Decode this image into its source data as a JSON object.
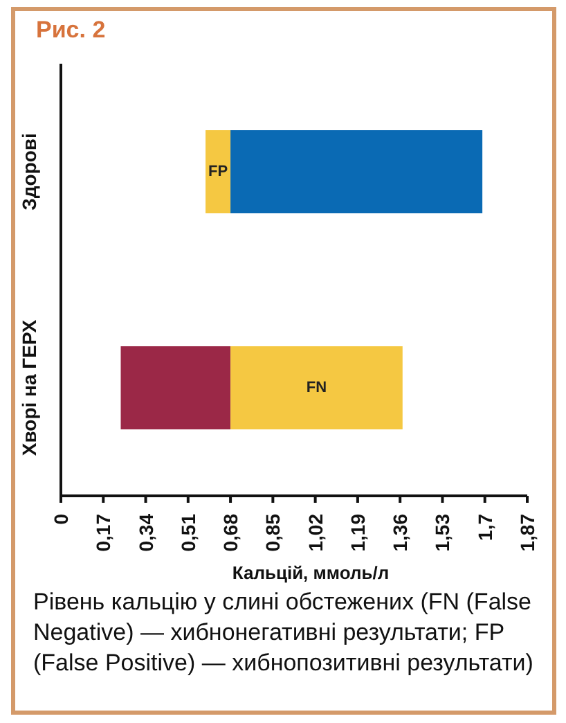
{
  "chart_data": {
    "type": "bar",
    "orientation": "horizontal",
    "title": "Рис. 2",
    "xlabel": "Кальцій, ммоль/л",
    "categories": [
      "Здорові",
      "Хворі на ГЕРХ"
    ],
    "series": [
      {
        "colors": [
          "#f5c842",
          "#9b2847"
        ],
        "base": [
          0.58,
          0.24
        ],
        "values": [
          0.1,
          0.44
        ],
        "value_labels": [
          "FP",
          null
        ]
      },
      {
        "colors": [
          "#0a6ab4",
          "#f5c842"
        ],
        "base": [
          0.68,
          0.68
        ],
        "values": [
          1.01,
          0.69
        ],
        "value_labels": [
          null,
          "FN"
        ]
      }
    ],
    "xlim": [
      0,
      1.87
    ],
    "xticks": [
      0,
      {
        "value": 0.17,
        "label": "0,17"
      },
      {
        "value": 0.34,
        "label": "0,34"
      },
      {
        "value": 0.51,
        "label": "0,51"
      },
      {
        "value": 0.68,
        "label": "0,68"
      },
      {
        "value": 0.85,
        "label": "0,85"
      },
      {
        "value": 1.02,
        "label": "1,02"
      },
      {
        "value": 1.19,
        "label": "1,19"
      },
      {
        "value": 1.36,
        "label": "1,36"
      },
      {
        "value": 1.53,
        "label": "1,53"
      },
      {
        "value": 1.7,
        "label": "1,7"
      },
      {
        "value": 1.87,
        "label": "1,87"
      }
    ],
    "grid": false,
    "legend": false,
    "annotations": [
      "Рівень кальцію у слині обстежених (FN (False Negative) — хибнонегативні результати; FP (False Positive) — хибнопозитивні результати)"
    ]
  }
}
